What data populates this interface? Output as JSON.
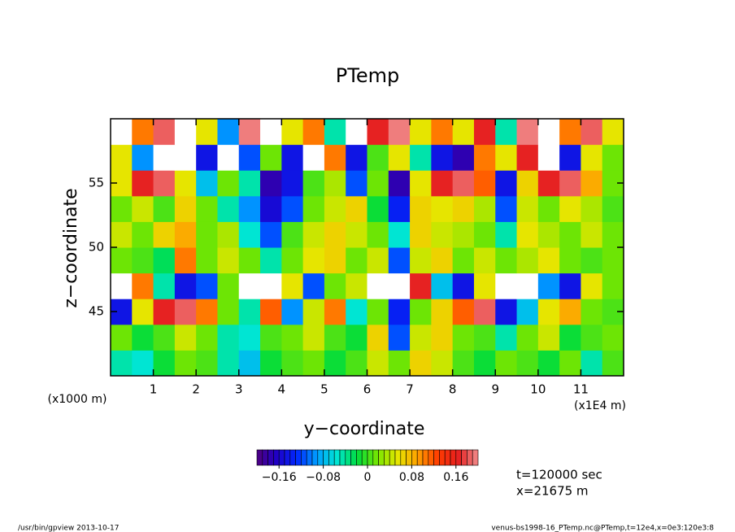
{
  "chart_data": {
    "type": "heatmap",
    "title": "PTemp",
    "xlabel": "y−coordinate",
    "ylabel": "z−coordinate",
    "y_unit_label": "(x1000 m)",
    "x_unit_label": "(x1E4 m)",
    "annotations": [
      "t=120000 sec",
      "x=21675 m"
    ],
    "footer_left": "/usr/bin/gpview   2013-10-17",
    "footer_right": "venus-bs1998-16_PTemp.nc@PTemp,t=12e4,x=0e3:120e3:8",
    "xlim": [
      0,
      12
    ],
    "ylim": [
      40,
      60
    ],
    "xticks": [
      1,
      2,
      3,
      4,
      5,
      6,
      7,
      8,
      9,
      10,
      11
    ],
    "yticks": [
      45,
      50,
      55
    ],
    "x": [
      0.25,
      0.75,
      1.25,
      1.75,
      2.25,
      2.75,
      3.25,
      3.75,
      4.25,
      4.75,
      5.25,
      5.75,
      6.25,
      6.75,
      7.25,
      7.75,
      8.25,
      8.75,
      9.25,
      9.75,
      10.25,
      10.75,
      11.25,
      11.75
    ],
    "y": [
      41,
      43,
      45,
      47,
      49,
      51,
      53,
      55,
      57,
      59
    ],
    "values": [
      [
        -0.04,
        -0.06,
        -0.02,
        0.02,
        0,
        -0.04,
        -0.08,
        -0.02,
        0,
        0.02,
        -0.02,
        0,
        0.04,
        0.02,
        0.06,
        0.04,
        0,
        -0.02,
        0.02,
        0,
        -0.02,
        0.02,
        -0.04,
        0
      ],
      [
        0.02,
        -0.02,
        0,
        0.04,
        0.02,
        -0.04,
        -0.06,
        0,
        0.02,
        0.04,
        0,
        -0.02,
        0.06,
        -0.12,
        0.04,
        0.06,
        0.02,
        0,
        -0.04,
        0.02,
        0.04,
        -0.02,
        0,
        0.02
      ],
      [
        -0.15,
        0.05,
        0.16,
        0.18,
        0.1,
        0.02,
        -0.05,
        0.12,
        -0.1,
        0.04,
        0.1,
        -0.06,
        0.02,
        -0.14,
        0.02,
        0.06,
        0.12,
        0.18,
        -0.15,
        -0.08,
        0.05,
        0.08,
        0.02,
        0
      ],
      [
        0.25,
        0.1,
        -0.05,
        -0.15,
        -0.12,
        0.02,
        0.25,
        0.22,
        0.05,
        -0.12,
        0.02,
        0.04,
        0.25,
        0.25,
        0.16,
        -0.08,
        -0.15,
        0.05,
        0.25,
        0.25,
        -0.1,
        -0.15,
        0.05,
        0.02
      ],
      [
        0.02,
        0,
        -0.03,
        0.1,
        0.02,
        0.04,
        0.02,
        -0.04,
        0.02,
        0.05,
        0.06,
        0.02,
        0.04,
        -0.12,
        0.04,
        0.06,
        0.02,
        0.04,
        0.02,
        0.03,
        0.05,
        0.02,
        0,
        0.02
      ],
      [
        0.04,
        0.02,
        0.06,
        0.08,
        0.02,
        0.03,
        -0.06,
        -0.12,
        0,
        0.04,
        0.06,
        0.04,
        0.02,
        -0.06,
        0.06,
        0.04,
        0.03,
        0.02,
        -0.04,
        0.05,
        0.03,
        0.02,
        0.04,
        0.01
      ],
      [
        0.02,
        0.04,
        0,
        0.06,
        0.02,
        -0.04,
        -0.1,
        -0.16,
        -0.12,
        0.02,
        0.04,
        0.06,
        -0.02,
        -0.14,
        0.06,
        0.05,
        0.06,
        0.03,
        -0.12,
        0.04,
        0.02,
        0.05,
        0.03,
        0
      ],
      [
        0.05,
        0.16,
        0.18,
        0.05,
        -0.08,
        0.02,
        -0.05,
        -0.18,
        -0.15,
        0,
        0.03,
        -0.12,
        0.02,
        -0.18,
        0.05,
        0.16,
        0.18,
        0.12,
        -0.15,
        0.06,
        0.16,
        0.18,
        0.08,
        0.02
      ],
      [
        0.05,
        -0.1,
        0.25,
        0.25,
        -0.15,
        0.25,
        -0.12,
        0.02,
        -0.15,
        0.25,
        0.1,
        -0.15,
        0,
        0.05,
        -0.05,
        -0.15,
        -0.18,
        0.1,
        0.05,
        0.16,
        0.25,
        -0.15,
        0.05,
        0.02
      ],
      [
        0.25,
        0.1,
        0.18,
        0.25,
        0.05,
        -0.1,
        0.2,
        0.25,
        0.05,
        0.1,
        -0.05,
        0.25,
        0.16,
        0.2,
        0.05,
        0.1,
        0.05,
        0.16,
        -0.05,
        0.2,
        0.25,
        0.1,
        0.18,
        0.05
      ]
    ],
    "clim": [
      -0.2,
      0.2
    ],
    "n_colors": 40,
    "color_stops": [
      "#50007f",
      "#1e00c8",
      "#0028ff",
      "#00a0ff",
      "#00e6d2",
      "#00dc3c",
      "#78e600",
      "#e6e600",
      "#ffa000",
      "#ff3c00",
      "#e61e1e",
      "#f08c8c"
    ],
    "out_of_range_color": "#ffffff",
    "colorbar_ticks": [
      {
        "value": -0.16,
        "label": "−0.16"
      },
      {
        "value": -0.08,
        "label": "−0.08"
      },
      0,
      0.08,
      0.16
    ]
  }
}
